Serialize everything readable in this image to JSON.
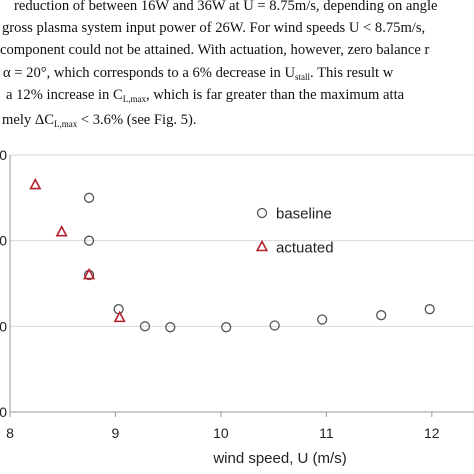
{
  "paragraph": {
    "line0": "reduction of between 16W and 36W at U = 8.75m/s, depending on angle",
    "line1": "gross plasma system input power of 26W. For wind speeds U < 8.75m/s,",
    "line2": "component could not be attained. With actuation, however, zero balance r",
    "line3": "α = 20°, which corresponds to a 6% decrease in U",
    "line3_sub": "stall",
    "line3_after": ". This result w",
    "line4": "a 12% increase in C",
    "line4_sub": "L,max",
    "line4_after": ", which is far greater than the maximum atta",
    "line5": "mely ΔC",
    "line5_sub": "L,max",
    "line5_after": " < 3.6% (see Fig. 5)."
  },
  "chart_data": {
    "type": "scatter",
    "xlabel": "wind speed, U (m/s)",
    "ylabel": "",
    "xlim": [
      8,
      12.4
    ],
    "ylim": [
      0,
      3
    ],
    "x_ticks": [
      "8",
      "9",
      "10",
      "11",
      "12"
    ],
    "y_ticks": [
      "0",
      "0",
      "0",
      "0"
    ],
    "grid": "horizontal",
    "legend_position": "right",
    "series": [
      {
        "name": "baseline",
        "marker": "circle",
        "color": "#555555",
        "points": [
          [
            8.75,
            2.5
          ],
          [
            8.75,
            2.0
          ],
          [
            8.75,
            1.6
          ],
          [
            9.03,
            1.2
          ],
          [
            9.28,
            1.0
          ],
          [
            9.52,
            0.99
          ],
          [
            10.05,
            0.99
          ],
          [
            10.51,
            1.01
          ],
          [
            10.96,
            1.08
          ],
          [
            11.52,
            1.13
          ],
          [
            11.98,
            1.2
          ]
        ]
      },
      {
        "name": "actuated",
        "marker": "triangle",
        "color": "#b2222b",
        "points": [
          [
            8.24,
            2.65
          ],
          [
            8.49,
            2.1
          ],
          [
            8.75,
            1.6
          ],
          [
            9.04,
            1.1
          ]
        ]
      }
    ]
  }
}
